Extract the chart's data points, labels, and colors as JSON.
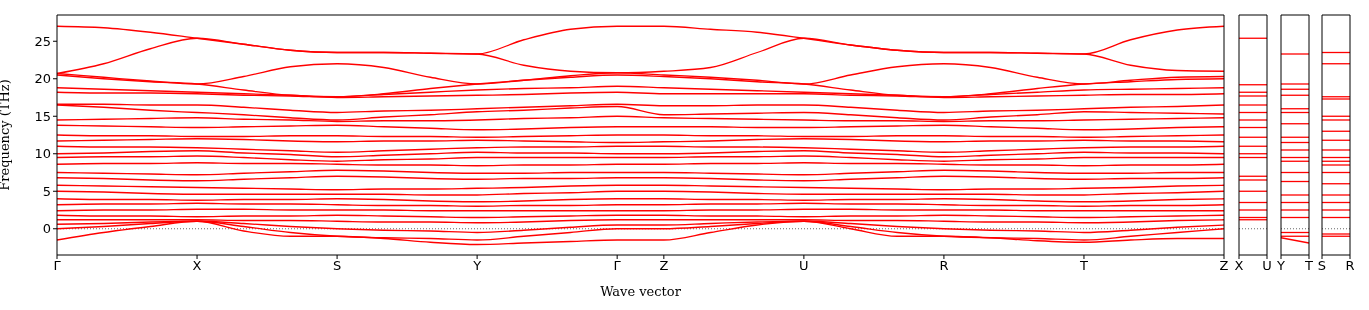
{
  "chart_data": [
    {
      "type": "line",
      "xlabel": "Wave vector",
      "ylabel": "Frequency (THz)",
      "line_style": "solid",
      "marker": "none",
      "categories": [
        "Γ",
        null,
        null,
        "X",
        null,
        null,
        "S",
        null,
        null,
        "Y",
        null,
        null,
        "Γ",
        "Z",
        null,
        null,
        "U",
        null,
        null,
        "R",
        null,
        null,
        "T",
        null,
        null,
        "Z"
      ],
      "ylim": [
        -3.5,
        28.5
      ],
      "yticks": [
        0,
        5,
        10,
        15,
        20,
        25
      ],
      "ref_lines": [
        {
          "axis": "y",
          "value": 0,
          "color": "#000000",
          "line_style": "dotted"
        }
      ],
      "series": [
        {
          "color": "#ff0000",
          "values": [
            27,
            26.8,
            26.2,
            25.4,
            24.6,
            23.8,
            23.5,
            23.5,
            23.4,
            23.3,
            25.2,
            26.6,
            27,
            27,
            26.6,
            26.2,
            25.4,
            24.5,
            23.8,
            23.5,
            23.5,
            23.4,
            23.3,
            25.2,
            26.5,
            27
          ]
        },
        {
          "color": "#ff0000",
          "values": [
            20.7,
            22,
            24,
            25.4,
            24.6,
            23.8,
            23.5,
            23.5,
            23.4,
            23.3,
            21.8,
            21,
            20.8,
            21,
            21.5,
            23.5,
            25.4,
            24.5,
            23.8,
            23.5,
            23.5,
            23.4,
            23.3,
            21.8,
            21.1,
            21
          ]
        },
        {
          "color": "#ff0000",
          "values": [
            20.7,
            20.2,
            19.7,
            19.3,
            20.3,
            21.6,
            22,
            21.5,
            20.2,
            19.3,
            19.8,
            20.4,
            20.8,
            20.5,
            20.2,
            19.8,
            19.3,
            20.5,
            21.6,
            22,
            21.5,
            20.2,
            19.3,
            19.8,
            20.2,
            20.3
          ]
        },
        {
          "color": "#ff0000",
          "values": [
            20.5,
            20,
            19.6,
            19.3,
            18.5,
            17.8,
            17.6,
            18,
            18.7,
            19.3,
            19.8,
            20.2,
            20.5,
            20.3,
            20,
            19.6,
            19.3,
            18.5,
            17.8,
            17.6,
            18,
            18.7,
            19.3,
            19.6,
            19.9,
            20
          ]
        },
        {
          "color": "#ff0000",
          "values": [
            18.8,
            18.6,
            18.4,
            18.2,
            18,
            17.8,
            17.6,
            17.9,
            18.2,
            18.5,
            18.7,
            18.8,
            19,
            18.8,
            18.6,
            18.4,
            18.2,
            18,
            17.8,
            17.6,
            17.9,
            18.2,
            18.5,
            18.6,
            18.7,
            18.8
          ]
        },
        {
          "color": "#ff0000",
          "values": [
            18.2,
            18.1,
            18.1,
            18,
            17.8,
            17.7,
            17.5,
            17.6,
            17.7,
            17.8,
            17.9,
            18.1,
            18.2,
            18,
            18,
            18,
            18,
            17.8,
            17.7,
            17.5,
            17.6,
            17.7,
            17.8,
            17.9,
            17.9,
            18
          ]
        },
        {
          "color": "#ff0000",
          "values": [
            16.6,
            16.6,
            16.5,
            16.5,
            16.2,
            15.8,
            15.5,
            15.7,
            15.8,
            16,
            16.2,
            16.4,
            16.6,
            16.4,
            16.4,
            16.5,
            16.5,
            16.2,
            15.8,
            15.5,
            15.7,
            15.8,
            16,
            16.2,
            16.3,
            16.5
          ]
        },
        {
          "color": "#ff0000",
          "values": [
            16.5,
            16.2,
            15.8,
            15.5,
            15.2,
            14.8,
            14.5,
            14.9,
            15.2,
            15.6,
            15.8,
            16.1,
            16.3,
            15.2,
            15.3,
            15.4,
            15.5,
            15.2,
            14.8,
            14.5,
            14.9,
            15.2,
            15.6,
            15.5,
            15.4,
            15.3
          ]
        },
        {
          "color": "#ff0000",
          "values": [
            14.5,
            14.6,
            14.7,
            14.8,
            14.6,
            14.5,
            14.3,
            14.4,
            14.4,
            14.5,
            14.7,
            14.8,
            15,
            14.8,
            14.7,
            14.6,
            14.5,
            14.4,
            14.4,
            14.3,
            14.4,
            14.4,
            14.5,
            14.6,
            14.7,
            14.8
          ]
        },
        {
          "color": "#ff0000",
          "values": [
            13.8,
            13.7,
            13.6,
            13.5,
            13.6,
            13.7,
            13.8,
            13.6,
            13.4,
            13.2,
            13.3,
            13.5,
            13.6,
            13.6,
            13.6,
            13.5,
            13.5,
            13.6,
            13.7,
            13.8,
            13.6,
            13.4,
            13.2,
            13.3,
            13.5,
            13.6
          ]
        },
        {
          "color": "#ff0000",
          "values": [
            12.5,
            12.4,
            12.4,
            12.3,
            12.3,
            12.4,
            12.4,
            12.3,
            12.3,
            12.2,
            12.3,
            12.4,
            12.5,
            12.5,
            12.4,
            12.4,
            12.3,
            12.3,
            12.4,
            12.4,
            12.3,
            12.3,
            12.2,
            12.3,
            12.4,
            12.5
          ]
        },
        {
          "color": "#ff0000",
          "values": [
            11.7,
            11.8,
            11.9,
            12,
            11.9,
            11.7,
            11.6,
            11.7,
            11.7,
            11.8,
            11.7,
            11.6,
            11.5,
            11.6,
            11.7,
            11.9,
            12,
            11.9,
            11.7,
            11.6,
            11.7,
            11.7,
            11.8,
            11.7,
            11.7,
            11.6
          ]
        },
        {
          "color": "#ff0000",
          "values": [
            11,
            10.9,
            10.9,
            10.8,
            10.6,
            10.4,
            10.2,
            10.4,
            10.6,
            10.8,
            10.9,
            10.9,
            11,
            11,
            10.9,
            10.9,
            10.8,
            10.6,
            10.4,
            10.2,
            10.4,
            10.6,
            10.8,
            10.9,
            10.9,
            11
          ]
        },
        {
          "color": "#ff0000",
          "values": [
            10,
            10.1,
            10.3,
            10.4,
            10.1,
            9.9,
            9.6,
            9.8,
            10,
            10.2,
            10.1,
            10.1,
            10,
            10,
            10.1,
            10.3,
            10.4,
            10.1,
            9.9,
            9.6,
            9.8,
            10,
            10.2,
            10.1,
            10.1,
            10
          ]
        },
        {
          "color": "#ff0000",
          "values": [
            9.5,
            9.6,
            9.6,
            9.7,
            9.5,
            9.2,
            9,
            9.2,
            9.3,
            9.5,
            9.5,
            9.5,
            9.5,
            9.5,
            9.6,
            9.6,
            9.7,
            9.5,
            9.2,
            9,
            9.2,
            9.3,
            9.5,
            9.5,
            9.5,
            9.5
          ]
        },
        {
          "color": "#ff0000",
          "values": [
            8.6,
            8.7,
            8.7,
            8.8,
            8.7,
            8.7,
            8.6,
            8.5,
            8.5,
            8.4,
            8.5,
            8.5,
            8.6,
            8.6,
            8.7,
            8.7,
            8.8,
            8.7,
            8.7,
            8.6,
            8.5,
            8.5,
            8.4,
            8.5,
            8.5,
            8.6
          ]
        },
        {
          "color": "#ff0000",
          "values": [
            7.5,
            7.4,
            7.3,
            7.2,
            7.4,
            7.6,
            7.8,
            7.7,
            7.5,
            7.4,
            7.4,
            7.5,
            7.5,
            7.5,
            7.4,
            7.3,
            7.2,
            7.4,
            7.6,
            7.8,
            7.7,
            7.5,
            7.4,
            7.4,
            7.5,
            7.5
          ]
        },
        {
          "color": "#ff0000",
          "values": [
            6.8,
            6.7,
            6.5,
            6.4,
            6.6,
            6.8,
            7,
            6.9,
            6.7,
            6.6,
            6.7,
            6.7,
            6.8,
            6.8,
            6.7,
            6.5,
            6.4,
            6.6,
            6.8,
            7,
            6.9,
            6.7,
            6.6,
            6.7,
            6.7,
            6.8
          ]
        },
        {
          "color": "#ff0000",
          "values": [
            5.8,
            5.7,
            5.6,
            5.5,
            5.4,
            5.3,
            5.2,
            5.3,
            5.3,
            5.4,
            5.5,
            5.7,
            5.8,
            5.8,
            5.7,
            5.6,
            5.5,
            5.4,
            5.3,
            5.2,
            5.3,
            5.3,
            5.4,
            5.5,
            5.7,
            5.8
          ]
        },
        {
          "color": "#ff0000",
          "values": [
            5,
            4.9,
            4.7,
            4.6,
            4.6,
            4.6,
            4.6,
            4.6,
            4.5,
            4.5,
            4.7,
            4.8,
            5,
            5,
            4.9,
            4.7,
            4.6,
            4.6,
            4.6,
            4.6,
            4.6,
            4.5,
            4.5,
            4.7,
            4.8,
            5
          ]
        },
        {
          "color": "#ff0000",
          "values": [
            4,
            3.9,
            3.9,
            3.8,
            3.9,
            3.9,
            4,
            3.9,
            3.7,
            3.6,
            3.7,
            3.9,
            4,
            4,
            3.9,
            3.9,
            3.8,
            3.9,
            3.9,
            4,
            3.9,
            3.7,
            3.6,
            3.7,
            3.9,
            4
          ]
        },
        {
          "color": "#ff0000",
          "values": [
            3.2,
            3.3,
            3.3,
            3.4,
            3.3,
            3.3,
            3.2,
            3.1,
            3.1,
            3,
            3.1,
            3.1,
            3.2,
            3.2,
            3.3,
            3.3,
            3.4,
            3.3,
            3.3,
            3.2,
            3.1,
            3.1,
            3,
            3.1,
            3.1,
            3.2
          ]
        },
        {
          "color": "#ff0000",
          "values": [
            2.4,
            2.5,
            2.5,
            2.6,
            2.6,
            2.5,
            2.5,
            2.5,
            2.4,
            2.4,
            2.4,
            2.4,
            2.4,
            2.4,
            2.5,
            2.5,
            2.6,
            2.6,
            2.5,
            2.5,
            2.5,
            2.4,
            2.4,
            2.4,
            2.4,
            2.4
          ]
        },
        {
          "color": "#ff0000",
          "values": [
            1.8,
            1.7,
            1.7,
            1.6,
            1.7,
            1.7,
            1.8,
            1.7,
            1.6,
            1.5,
            1.6,
            1.7,
            1.8,
            1.8,
            1.7,
            1.7,
            1.6,
            1.7,
            1.7,
            1.8,
            1.7,
            1.6,
            1.5,
            1.6,
            1.7,
            1.8
          ]
        },
        {
          "color": "#ff0000",
          "values": [
            1.2,
            1.2,
            1.2,
            1.2,
            1.1,
            1.1,
            1,
            0.9,
            0.9,
            0.8,
            0.9,
            1.1,
            1.2,
            1.2,
            1.2,
            1.2,
            1.2,
            1.1,
            1.1,
            1,
            0.9,
            0.9,
            0.8,
            0.9,
            1.1,
            1.2
          ]
        },
        {
          "color": "#ff0000",
          "values": [
            0.6,
            0.7,
            0.9,
            1,
            0.7,
            0.3,
            0,
            -0.2,
            -0.3,
            -0.5,
            -0.2,
            0.2,
            0.5,
            0.5,
            0.7,
            0.9,
            1,
            0.7,
            0.3,
            0,
            -0.2,
            -0.3,
            -0.5,
            -0.2,
            0.2,
            0.5
          ]
        },
        {
          "color": "#ff0000",
          "values": [
            0,
            0.3,
            0.7,
            1,
            0.3,
            -0.5,
            -1,
            -1.2,
            -1.3,
            -1.5,
            -1,
            -0.5,
            0,
            0,
            0.3,
            0.7,
            1,
            0.3,
            -0.5,
            -1,
            -1.2,
            -1.3,
            -1.5,
            -1,
            -0.5,
            0
          ]
        },
        {
          "color": "#ff0000",
          "values": [
            -1.5,
            -0.5,
            0.3,
            1,
            -0.3,
            -1,
            -1,
            -1.3,
            -1.8,
            -2.1,
            -1.9,
            -1.7,
            -1.5,
            -1.5,
            -0.5,
            0.5,
            1,
            0,
            -1,
            -1,
            -1.2,
            -1.6,
            -1.8,
            -1.5,
            -1.3,
            -1.3
          ]
        }
      ]
    },
    {
      "type": "line",
      "tick_labels": "x",
      "line_style": "solid",
      "marker": "none",
      "categories": [
        "X",
        "U"
      ],
      "ylim": [
        -3.5,
        28.5
      ],
      "yticks": [
        0,
        5,
        10,
        15,
        20,
        25
      ],
      "ref_lines": [
        {
          "axis": "y",
          "value": 0,
          "color": "#000000",
          "line_style": "dotted"
        }
      ],
      "series": [
        {
          "color": "#ff0000",
          "values": [
            25.4,
            25.4
          ]
        },
        {
          "color": "#ff0000",
          "values": [
            19.2,
            19.2
          ]
        },
        {
          "color": "#ff0000",
          "values": [
            18.2,
            18.2
          ]
        },
        {
          "color": "#ff0000",
          "values": [
            17.7,
            17.7
          ]
        },
        {
          "color": "#ff0000",
          "values": [
            16.5,
            16.5
          ]
        },
        {
          "color": "#ff0000",
          "values": [
            15.5,
            15.5
          ]
        },
        {
          "color": "#ff0000",
          "values": [
            14.5,
            14.5
          ]
        },
        {
          "color": "#ff0000",
          "values": [
            13.5,
            13.5
          ]
        },
        {
          "color": "#ff0000",
          "values": [
            12.2,
            12.2
          ]
        },
        {
          "color": "#ff0000",
          "values": [
            11,
            11
          ]
        },
        {
          "color": "#ff0000",
          "values": [
            10,
            10
          ]
        },
        {
          "color": "#ff0000",
          "values": [
            9.5,
            9.5
          ]
        },
        {
          "color": "#ff0000",
          "values": [
            7,
            7
          ]
        },
        {
          "color": "#ff0000",
          "values": [
            6.5,
            6.5
          ]
        },
        {
          "color": "#ff0000",
          "values": [
            5,
            5
          ]
        },
        {
          "color": "#ff0000",
          "values": [
            3.5,
            3.5
          ]
        },
        {
          "color": "#ff0000",
          "values": [
            2.5,
            2.5
          ]
        },
        {
          "color": "#ff0000",
          "values": [
            1.5,
            1.5
          ]
        },
        {
          "color": "#ff0000",
          "values": [
            1.2,
            1.2
          ]
        }
      ]
    },
    {
      "type": "line",
      "tick_labels": "x",
      "line_style": "solid",
      "marker": "none",
      "categories": [
        "Y",
        "T"
      ],
      "ylim": [
        -3.5,
        28.5
      ],
      "yticks": [
        0,
        5,
        10,
        15,
        20,
        25
      ],
      "ref_lines": [
        {
          "axis": "y",
          "value": 0,
          "color": "#000000",
          "line_style": "dotted"
        }
      ],
      "series": [
        {
          "color": "#ff0000",
          "values": [
            23.3,
            23.3
          ]
        },
        {
          "color": "#ff0000",
          "values": [
            19.3,
            19.3
          ]
        },
        {
          "color": "#ff0000",
          "values": [
            18.6,
            18.6
          ]
        },
        {
          "color": "#ff0000",
          "values": [
            17.8,
            17.8
          ]
        },
        {
          "color": "#ff0000",
          "values": [
            16,
            16
          ]
        },
        {
          "color": "#ff0000",
          "values": [
            15.5,
            15.5
          ]
        },
        {
          "color": "#ff0000",
          "values": [
            14,
            14
          ]
        },
        {
          "color": "#ff0000",
          "values": [
            12.2,
            12.2
          ]
        },
        {
          "color": "#ff0000",
          "values": [
            11.5,
            11.5
          ]
        },
        {
          "color": "#ff0000",
          "values": [
            10.5,
            10.5
          ]
        },
        {
          "color": "#ff0000",
          "values": [
            9.5,
            9.5
          ]
        },
        {
          "color": "#ff0000",
          "values": [
            9,
            9
          ]
        },
        {
          "color": "#ff0000",
          "values": [
            7.5,
            7.5
          ]
        },
        {
          "color": "#ff0000",
          "values": [
            6.3,
            6.3
          ]
        },
        {
          "color": "#ff0000",
          "values": [
            4.5,
            4.5
          ]
        },
        {
          "color": "#ff0000",
          "values": [
            3.5,
            3.5
          ]
        },
        {
          "color": "#ff0000",
          "values": [
            2.5,
            2.5
          ]
        },
        {
          "color": "#ff0000",
          "values": [
            1.5,
            1.5
          ]
        },
        {
          "color": "#ff0000",
          "values": [
            -0.5,
            -0.5
          ]
        },
        {
          "color": "#ff0000",
          "values": [
            -1,
            -1
          ]
        },
        {
          "color": "#ff0000",
          "values": [
            -1.2,
            -1.9
          ]
        }
      ]
    },
    {
      "type": "line",
      "tick_labels": "x",
      "line_style": "solid",
      "marker": "none",
      "categories": [
        "S",
        "R"
      ],
      "ylim": [
        -3.5,
        28.5
      ],
      "yticks": [
        0,
        5,
        10,
        15,
        20,
        25
      ],
      "ref_lines": [
        {
          "axis": "y",
          "value": 0,
          "color": "#000000",
          "line_style": "dotted"
        }
      ],
      "series": [
        {
          "color": "#ff0000",
          "values": [
            23.5,
            23.5
          ]
        },
        {
          "color": "#ff0000",
          "values": [
            22,
            22
          ]
        },
        {
          "color": "#ff0000",
          "values": [
            17.6,
            17.6
          ]
        },
        {
          "color": "#ff0000",
          "values": [
            17.3,
            17.3
          ]
        },
        {
          "color": "#ff0000",
          "values": [
            15,
            15
          ]
        },
        {
          "color": "#ff0000",
          "values": [
            14.5,
            14.5
          ]
        },
        {
          "color": "#ff0000",
          "values": [
            13,
            13
          ]
        },
        {
          "color": "#ff0000",
          "values": [
            11.8,
            11.8
          ]
        },
        {
          "color": "#ff0000",
          "values": [
            10.5,
            10.5
          ]
        },
        {
          "color": "#ff0000",
          "values": [
            9.5,
            9.5
          ]
        },
        {
          "color": "#ff0000",
          "values": [
            9,
            9
          ]
        },
        {
          "color": "#ff0000",
          "values": [
            8.5,
            8.5
          ]
        },
        {
          "color": "#ff0000",
          "values": [
            7.5,
            7.5
          ]
        },
        {
          "color": "#ff0000",
          "values": [
            6,
            6
          ]
        },
        {
          "color": "#ff0000",
          "values": [
            4.5,
            4.5
          ]
        },
        {
          "color": "#ff0000",
          "values": [
            3.5,
            3.5
          ]
        },
        {
          "color": "#ff0000",
          "values": [
            2.5,
            2.5
          ]
        },
        {
          "color": "#ff0000",
          "values": [
            1.5,
            1.5
          ]
        },
        {
          "color": "#ff0000",
          "values": [
            -0.7,
            -0.7
          ]
        },
        {
          "color": "#ff0000",
          "values": [
            -1,
            -1
          ]
        }
      ]
    }
  ]
}
